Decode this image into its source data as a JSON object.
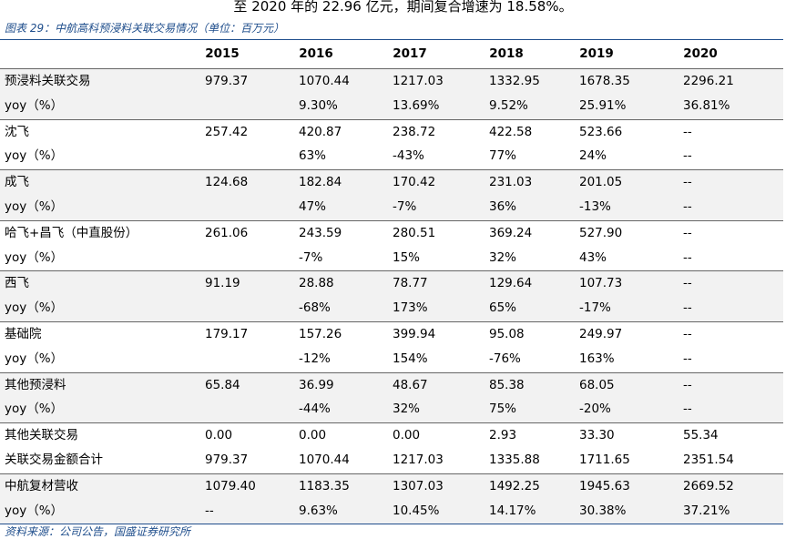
{
  "top_text": "至 2020 年的 22.96 亿元，期间复合增速为 18.58%。",
  "caption": "图表 29：中航高科预浸料关联交易情况（单位：百万元）",
  "table": {
    "header": [
      "2015",
      "2016",
      "2017",
      "2018",
      "2019",
      "2020"
    ],
    "rows": [
      [
        "预浸料关联交易",
        "979.37",
        "1070.44",
        "1217.03",
        "1332.95",
        "1678.35",
        "2296.21"
      ],
      [
        "yoy（%）",
        null,
        "9.30%",
        "13.69%",
        "9.52%",
        "25.91%",
        "36.81%"
      ],
      [
        "沈飞",
        "257.42",
        "420.87",
        "238.72",
        "422.58",
        "523.66",
        "--"
      ],
      [
        "yoy（%）",
        null,
        "63%",
        "-43%",
        "77%",
        "24%",
        "--"
      ],
      [
        "成飞",
        "124.68",
        "182.84",
        "170.42",
        "231.03",
        "201.05",
        "--"
      ],
      [
        "yoy（%）",
        null,
        "47%",
        "-7%",
        "36%",
        "-13%",
        "--"
      ],
      [
        "哈飞+昌飞（中直股份）",
        "261.06",
        "243.59",
        "280.51",
        "369.24",
        "527.90",
        "--"
      ],
      [
        "yoy（%）",
        null,
        "-7%",
        "15%",
        "32%",
        "43%",
        "--"
      ],
      [
        "西飞",
        "91.19",
        "28.88",
        "78.77",
        "129.64",
        "107.73",
        "--"
      ],
      [
        "yoy（%）",
        null,
        "-68%",
        "173%",
        "65%",
        "-17%",
        "--"
      ],
      [
        "基础院",
        "179.17",
        "157.26",
        "399.94",
        "95.08",
        "249.97",
        "--"
      ],
      [
        "yoy（%）",
        null,
        "-12%",
        "154%",
        "-76%",
        "163%",
        "--"
      ],
      [
        "其他预浸料",
        "65.84",
        "36.99",
        "48.67",
        "85.38",
        "68.05",
        "--"
      ],
      [
        "yoy（%）",
        null,
        "-44%",
        "32%",
        "75%",
        "-20%",
        "--"
      ],
      [
        "其他关联交易",
        "0.00",
        "0.00",
        "0.00",
        "2.93",
        "33.30",
        "55.34"
      ],
      [
        "关联交易金额合计",
        "979.37",
        "1070.44",
        "1217.03",
        "1335.88",
        "1711.65",
        "2351.54"
      ],
      [
        "中航复材营收",
        "1079.40",
        "1183.35",
        "1307.03",
        "1492.25",
        "1945.63",
        "2669.52"
      ],
      [
        "yoy（%）",
        "--",
        "9.63%",
        "10.45%",
        "14.17%",
        "30.38%",
        "37.21%"
      ]
    ]
  },
  "source": "资料来源：公司公告，国盛证券研究所"
}
